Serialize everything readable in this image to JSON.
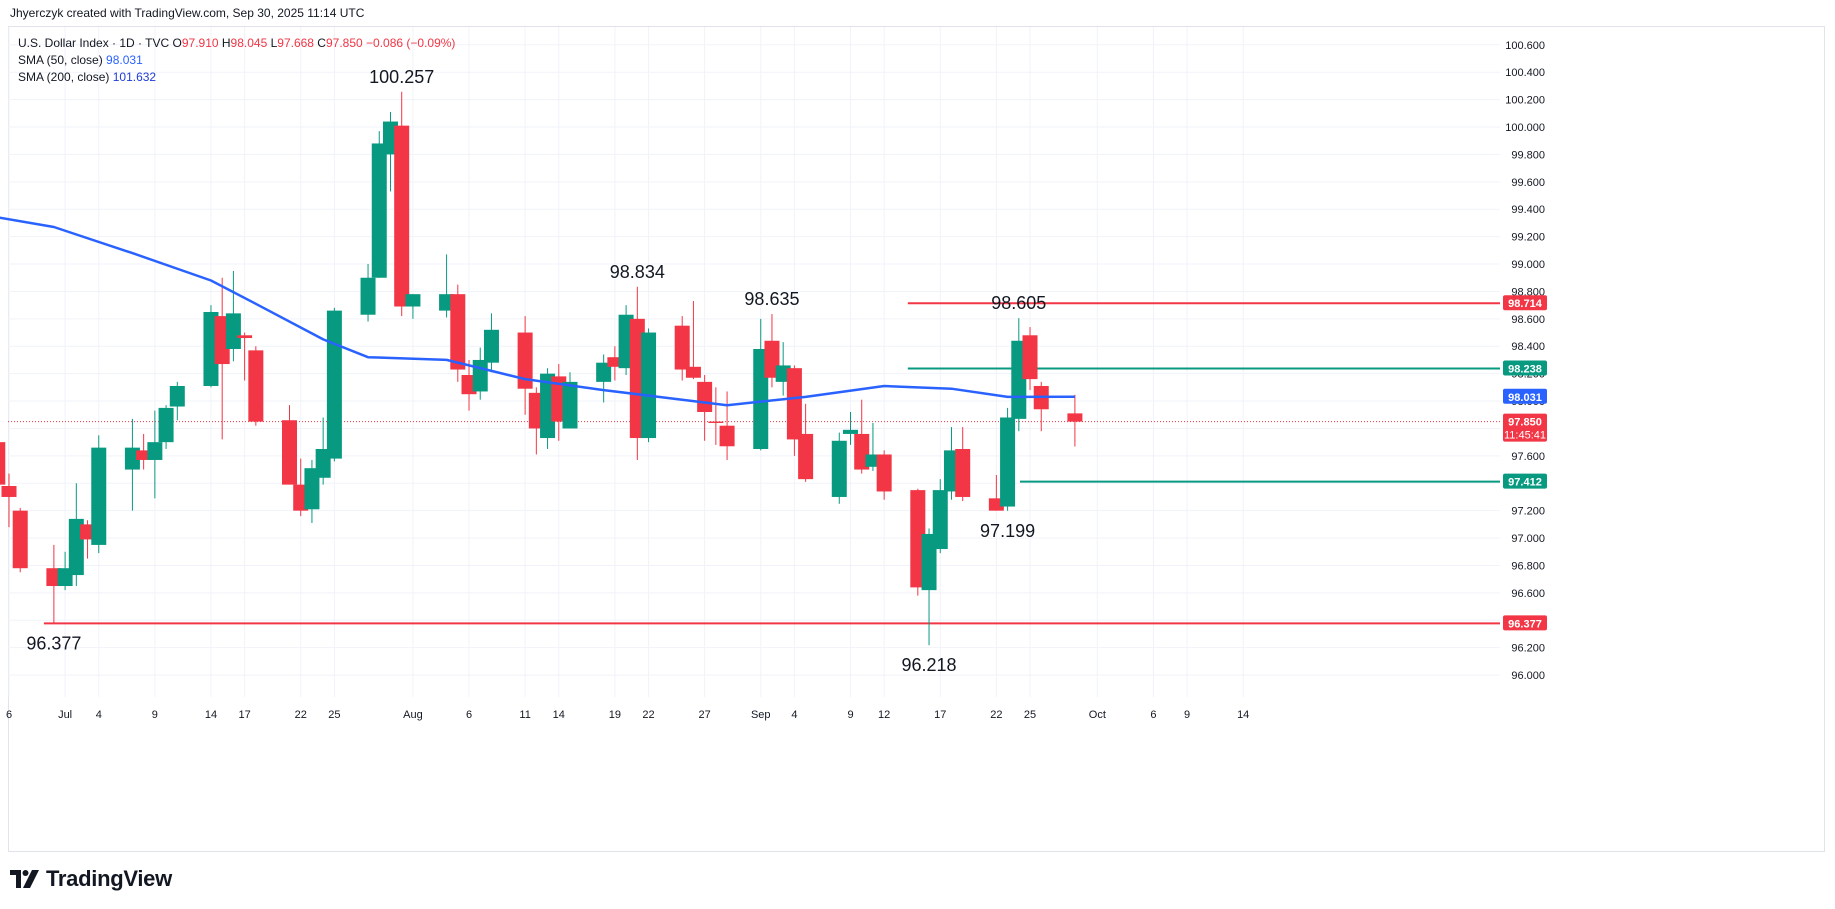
{
  "header": {
    "credit": "Jhyerczyk created with TradingView.com, Sep 30, 2025 11:14 UTC"
  },
  "legend": {
    "symbol": "U.S. Dollar Index · 1D · TVC",
    "ohlc": [
      {
        "k": "O",
        "v": "97.910"
      },
      {
        "k": "H",
        "v": "98.045"
      },
      {
        "k": "L",
        "v": "97.668"
      },
      {
        "k": "C",
        "v": "97.850"
      }
    ],
    "change": "−0.086 (−0.09%)",
    "sma50_label": "SMA (50, close)",
    "sma50_value": "98.031",
    "sma200_label": "SMA (200, close)",
    "sma200_value": "101.632"
  },
  "logo": {
    "text": "TradingView",
    "icon": "tradingview-logo-icon"
  },
  "colors": {
    "up": "#089981",
    "down": "#f23645",
    "sma50": "#2962ff",
    "grid": "#f0f3fa",
    "axis_text": "#131722"
  },
  "chart_data": {
    "type": "candlestick",
    "symbol": "U.S. Dollar Index",
    "interval": "1D",
    "y_ticks": [
      "96.000",
      "96.200",
      "96.400",
      "96.600",
      "96.800",
      "97.000",
      "97.200",
      "97.400",
      "97.600",
      "97.800",
      "98.000",
      "98.200",
      "98.400",
      "98.600",
      "98.800",
      "99.000",
      "99.200",
      "99.400",
      "99.600",
      "99.800",
      "100.000",
      "100.200",
      "100.400",
      "100.600"
    ],
    "y_range": [
      95.84,
      100.73
    ],
    "x_ticks": [
      {
        "label": "6",
        "date": "2025-06-26"
      },
      {
        "label": "Jul",
        "date": "2025-07-01"
      },
      {
        "label": "4",
        "date": "2025-07-04"
      },
      {
        "label": "9",
        "date": "2025-07-09"
      },
      {
        "label": "14",
        "date": "2025-07-14"
      },
      {
        "label": "17",
        "date": "2025-07-17"
      },
      {
        "label": "22",
        "date": "2025-07-22"
      },
      {
        "label": "25",
        "date": "2025-07-25"
      },
      {
        "label": "Aug",
        "date": "2025-08-01"
      },
      {
        "label": "6",
        "date": "2025-08-06"
      },
      {
        "label": "11",
        "date": "2025-08-11"
      },
      {
        "label": "14",
        "date": "2025-08-14"
      },
      {
        "label": "19",
        "date": "2025-08-19"
      },
      {
        "label": "22",
        "date": "2025-08-22"
      },
      {
        "label": "27",
        "date": "2025-08-27"
      },
      {
        "label": "Sep",
        "date": "2025-09-01"
      },
      {
        "label": "4",
        "date": "2025-09-04"
      },
      {
        "label": "9",
        "date": "2025-09-09"
      },
      {
        "label": "12",
        "date": "2025-09-12"
      },
      {
        "label": "17",
        "date": "2025-09-17"
      },
      {
        "label": "22",
        "date": "2025-09-22"
      },
      {
        "label": "25",
        "date": "2025-09-25"
      },
      {
        "label": "Oct",
        "date": "2025-10-01"
      },
      {
        "label": "6",
        "date": "2025-10-06"
      },
      {
        "label": "9",
        "date": "2025-10-09"
      },
      {
        "label": "14",
        "date": "2025-10-14"
      }
    ],
    "candles": [
      {
        "date": "2025-06-25",
        "o": 97.7,
        "h": 97.75,
        "l": 97.35,
        "c": 97.39
      },
      {
        "date": "2025-06-26",
        "o": 97.38,
        "h": 97.47,
        "l": 97.08,
        "c": 97.3
      },
      {
        "date": "2025-06-27",
        "o": 97.2,
        "h": 97.22,
        "l": 96.75,
        "c": 96.78
      },
      {
        "date": "2025-06-30",
        "o": 96.78,
        "h": 96.95,
        "l": 96.377,
        "c": 96.65
      },
      {
        "date": "2025-07-01",
        "o": 96.65,
        "h": 96.9,
        "l": 96.62,
        "c": 96.78
      },
      {
        "date": "2025-07-02",
        "o": 96.73,
        "h": 97.4,
        "l": 96.65,
        "c": 97.14
      },
      {
        "date": "2025-07-03",
        "o": 97.1,
        "h": 97.13,
        "l": 96.85,
        "c": 96.99
      },
      {
        "date": "2025-07-04",
        "o": 96.95,
        "h": 97.75,
        "l": 96.89,
        "c": 97.66
      },
      {
        "date": "2025-07-07",
        "o": 97.5,
        "h": 97.87,
        "l": 97.2,
        "c": 97.66
      },
      {
        "date": "2025-07-08",
        "o": 97.64,
        "h": 97.76,
        "l": 97.5,
        "c": 97.57
      },
      {
        "date": "2025-07-09",
        "o": 97.57,
        "h": 97.93,
        "l": 97.29,
        "c": 97.7
      },
      {
        "date": "2025-07-10",
        "o": 97.7,
        "h": 97.97,
        "l": 97.65,
        "c": 97.95
      },
      {
        "date": "2025-07-11",
        "o": 97.96,
        "h": 98.14,
        "l": 97.86,
        "c": 98.11
      },
      {
        "date": "2025-07-14",
        "o": 98.11,
        "h": 98.7,
        "l": 98.1,
        "c": 98.65
      },
      {
        "date": "2025-07-15",
        "o": 98.62,
        "h": 98.9,
        "l": 97.72,
        "c": 98.27
      },
      {
        "date": "2025-07-16",
        "o": 98.38,
        "h": 98.95,
        "l": 98.29,
        "c": 98.64
      },
      {
        "date": "2025-07-17",
        "o": 98.48,
        "h": 98.5,
        "l": 98.15,
        "c": 98.46
      },
      {
        "date": "2025-07-18",
        "o": 98.37,
        "h": 98.4,
        "l": 97.82,
        "c": 97.85
      },
      {
        "date": "2025-07-21",
        "o": 97.86,
        "h": 97.97,
        "l": 97.42,
        "c": 97.39
      },
      {
        "date": "2025-07-22",
        "o": 97.39,
        "h": 97.58,
        "l": 97.16,
        "c": 97.2
      },
      {
        "date": "2025-07-23",
        "o": 97.21,
        "h": 97.57,
        "l": 97.11,
        "c": 97.51
      },
      {
        "date": "2025-07-24",
        "o": 97.44,
        "h": 97.88,
        "l": 97.39,
        "c": 97.65
      },
      {
        "date": "2025-07-25",
        "o": 97.58,
        "h": 98.68,
        "l": 97.56,
        "c": 98.66
      },
      {
        "date": "2025-07-28",
        "o": 98.63,
        "h": 99.0,
        "l": 98.58,
        "c": 98.9
      },
      {
        "date": "2025-07-29",
        "o": 98.9,
        "h": 99.97,
        "l": 98.9,
        "c": 99.88
      },
      {
        "date": "2025-07-30",
        "o": 99.8,
        "h": 100.11,
        "l": 99.53,
        "c": 100.04
      },
      {
        "date": "2025-07-31",
        "o": 100.01,
        "h": 100.257,
        "l": 98.62,
        "c": 98.69
      },
      {
        "date": "2025-08-01",
        "o": 98.69,
        "h": 98.78,
        "l": 98.6,
        "c": 98.78
      },
      {
        "date": "2025-08-04",
        "o": 98.66,
        "h": 99.07,
        "l": 98.61,
        "c": 98.78
      },
      {
        "date": "2025-08-05",
        "o": 98.78,
        "h": 98.85,
        "l": 98.14,
        "c": 98.23
      },
      {
        "date": "2025-08-06",
        "o": 98.19,
        "h": 98.3,
        "l": 97.93,
        "c": 98.05
      },
      {
        "date": "2025-08-07",
        "o": 98.07,
        "h": 98.39,
        "l": 98.01,
        "c": 98.3
      },
      {
        "date": "2025-08-08",
        "o": 98.28,
        "h": 98.64,
        "l": 98.21,
        "c": 98.52
      },
      {
        "date": "2025-08-11",
        "o": 98.5,
        "h": 98.62,
        "l": 97.9,
        "c": 98.09
      },
      {
        "date": "2025-08-12",
        "o": 98.06,
        "h": 98.1,
        "l": 97.61,
        "c": 97.8
      },
      {
        "date": "2025-08-13",
        "o": 97.73,
        "h": 98.24,
        "l": 97.65,
        "c": 98.2
      },
      {
        "date": "2025-08-14",
        "o": 98.18,
        "h": 98.27,
        "l": 97.71,
        "c": 97.85
      },
      {
        "date": "2025-08-15",
        "o": 97.8,
        "h": 98.21,
        "l": 97.8,
        "c": 98.14
      },
      {
        "date": "2025-08-18",
        "o": 98.14,
        "h": 98.34,
        "l": 97.99,
        "c": 98.28
      },
      {
        "date": "2025-08-19",
        "o": 98.32,
        "h": 98.4,
        "l": 98.15,
        "c": 98.25
      },
      {
        "date": "2025-08-20",
        "o": 98.24,
        "h": 98.7,
        "l": 98.19,
        "c": 98.63
      },
      {
        "date": "2025-08-21",
        "o": 98.6,
        "h": 98.834,
        "l": 97.57,
        "c": 97.73
      },
      {
        "date": "2025-08-22",
        "o": 97.73,
        "h": 98.53,
        "l": 97.7,
        "c": 98.5
      },
      {
        "date": "2025-08-25",
        "o": 98.55,
        "h": 98.62,
        "l": 98.15,
        "c": 98.23
      },
      {
        "date": "2025-08-26",
        "o": 98.25,
        "h": 98.73,
        "l": 98.16,
        "c": 98.17
      },
      {
        "date": "2025-08-27",
        "o": 98.14,
        "h": 98.19,
        "l": 97.71,
        "c": 97.92
      },
      {
        "date": "2025-08-28",
        "o": 97.85,
        "h": 98.1,
        "l": 97.68,
        "c": 97.84
      },
      {
        "date": "2025-08-29",
        "o": 97.82,
        "h": 98.07,
        "l": 97.57,
        "c": 97.67
      },
      {
        "date": "2025-09-01",
        "o": 97.65,
        "h": 98.6,
        "l": 97.64,
        "c": 98.38
      },
      {
        "date": "2025-09-02",
        "o": 98.44,
        "h": 98.635,
        "l": 98.1,
        "c": 98.17
      },
      {
        "date": "2025-09-03",
        "o": 98.14,
        "h": 98.43,
        "l": 98.04,
        "c": 98.26
      },
      {
        "date": "2025-09-04",
        "o": 98.24,
        "h": 98.26,
        "l": 97.6,
        "c": 97.72
      },
      {
        "date": "2025-09-05",
        "o": 97.76,
        "h": 97.98,
        "l": 97.41,
        "c": 97.43
      },
      {
        "date": "2025-09-08",
        "o": 97.3,
        "h": 97.77,
        "l": 97.25,
        "c": 97.71
      },
      {
        "date": "2025-09-09",
        "o": 97.76,
        "h": 97.92,
        "l": 97.68,
        "c": 97.79
      },
      {
        "date": "2025-09-10",
        "o": 97.76,
        "h": 98.01,
        "l": 97.47,
        "c": 97.5
      },
      {
        "date": "2025-09-11",
        "o": 97.52,
        "h": 97.84,
        "l": 97.49,
        "c": 97.61
      },
      {
        "date": "2025-09-12",
        "o": 97.61,
        "h": 97.64,
        "l": 97.28,
        "c": 97.34
      },
      {
        "date": "2025-09-15",
        "o": 97.35,
        "h": 97.36,
        "l": 96.58,
        "c": 96.64
      },
      {
        "date": "2025-09-16",
        "o": 96.62,
        "h": 97.07,
        "l": 96.218,
        "c": 97.03
      },
      {
        "date": "2025-09-17",
        "o": 96.92,
        "h": 97.43,
        "l": 96.89,
        "c": 97.35
      },
      {
        "date": "2025-09-18",
        "o": 97.34,
        "h": 97.81,
        "l": 97.28,
        "c": 97.64
      },
      {
        "date": "2025-09-19",
        "o": 97.65,
        "h": 97.81,
        "l": 97.27,
        "c": 97.3
      },
      {
        "date": "2025-09-22",
        "o": 97.29,
        "h": 97.46,
        "l": 97.2,
        "c": 97.2
      },
      {
        "date": "2025-09-23",
        "o": 97.23,
        "h": 97.95,
        "l": 97.199,
        "c": 97.88
      },
      {
        "date": "2025-09-24",
        "o": 97.87,
        "h": 98.605,
        "l": 97.78,
        "c": 98.44
      },
      {
        "date": "2025-09-25",
        "o": 98.48,
        "h": 98.54,
        "l": 98.08,
        "c": 98.16
      },
      {
        "date": "2025-09-26",
        "o": 98.11,
        "h": 98.14,
        "l": 97.78,
        "c": 97.94
      },
      {
        "date": "2025-09-29",
        "o": 97.91,
        "h": 98.045,
        "l": 97.668,
        "c": 97.85
      }
    ],
    "sma50": [
      {
        "date": "2025-06-25",
        "v": 99.34
      },
      {
        "date": "2025-06-30",
        "v": 99.27
      },
      {
        "date": "2025-07-07",
        "v": 99.08
      },
      {
        "date": "2025-07-14",
        "v": 98.88
      },
      {
        "date": "2025-07-18",
        "v": 98.71
      },
      {
        "date": "2025-07-24",
        "v": 98.45
      },
      {
        "date": "2025-07-28",
        "v": 98.32
      },
      {
        "date": "2025-08-04",
        "v": 98.3
      },
      {
        "date": "2025-08-11",
        "v": 98.16
      },
      {
        "date": "2025-08-18",
        "v": 98.08
      },
      {
        "date": "2025-08-22",
        "v": 98.04
      },
      {
        "date": "2025-08-29",
        "v": 97.97
      },
      {
        "date": "2025-09-05",
        "v": 98.03
      },
      {
        "date": "2025-09-12",
        "v": 98.11
      },
      {
        "date": "2025-09-18",
        "v": 98.09
      },
      {
        "date": "2025-09-23",
        "v": 98.03
      },
      {
        "date": "2025-09-29",
        "v": 98.031
      }
    ],
    "levels": [
      {
        "price": 98.714,
        "label": "98.714",
        "color": "#f23645",
        "from": "2025-09-15"
      },
      {
        "price": 98.238,
        "label": "98.238",
        "color": "#089981",
        "from": "2025-09-15"
      },
      {
        "price": 97.412,
        "label": "97.412",
        "color": "#089981",
        "from": "2025-09-25"
      },
      {
        "price": 96.377,
        "label": "96.377",
        "color": "#f23645",
        "from": "2025-06-30"
      }
    ],
    "current_price": {
      "price": 97.85,
      "label": "97.850",
      "countdown": "11:45:41",
      "color": "#f23645"
    },
    "sma_badge": {
      "price": 98.031,
      "label": "98.031",
      "color": "#2962ff"
    },
    "annotations": [
      {
        "date": "2025-07-31",
        "price": 100.257,
        "text": "100.257",
        "pos": "above"
      },
      {
        "date": "2025-08-21",
        "price": 98.834,
        "text": "98.834",
        "pos": "above"
      },
      {
        "date": "2025-09-02",
        "price": 98.635,
        "text": "98.635",
        "pos": "above"
      },
      {
        "date": "2025-09-24",
        "price": 98.605,
        "text": "98.605",
        "pos": "above"
      },
      {
        "date": "2025-06-30",
        "price": 96.377,
        "text": "96.377",
        "pos": "below"
      },
      {
        "date": "2025-09-16",
        "price": 96.218,
        "text": "96.218",
        "pos": "below"
      },
      {
        "date": "2025-09-23",
        "price": 97.199,
        "text": "97.199",
        "pos": "below"
      }
    ]
  }
}
